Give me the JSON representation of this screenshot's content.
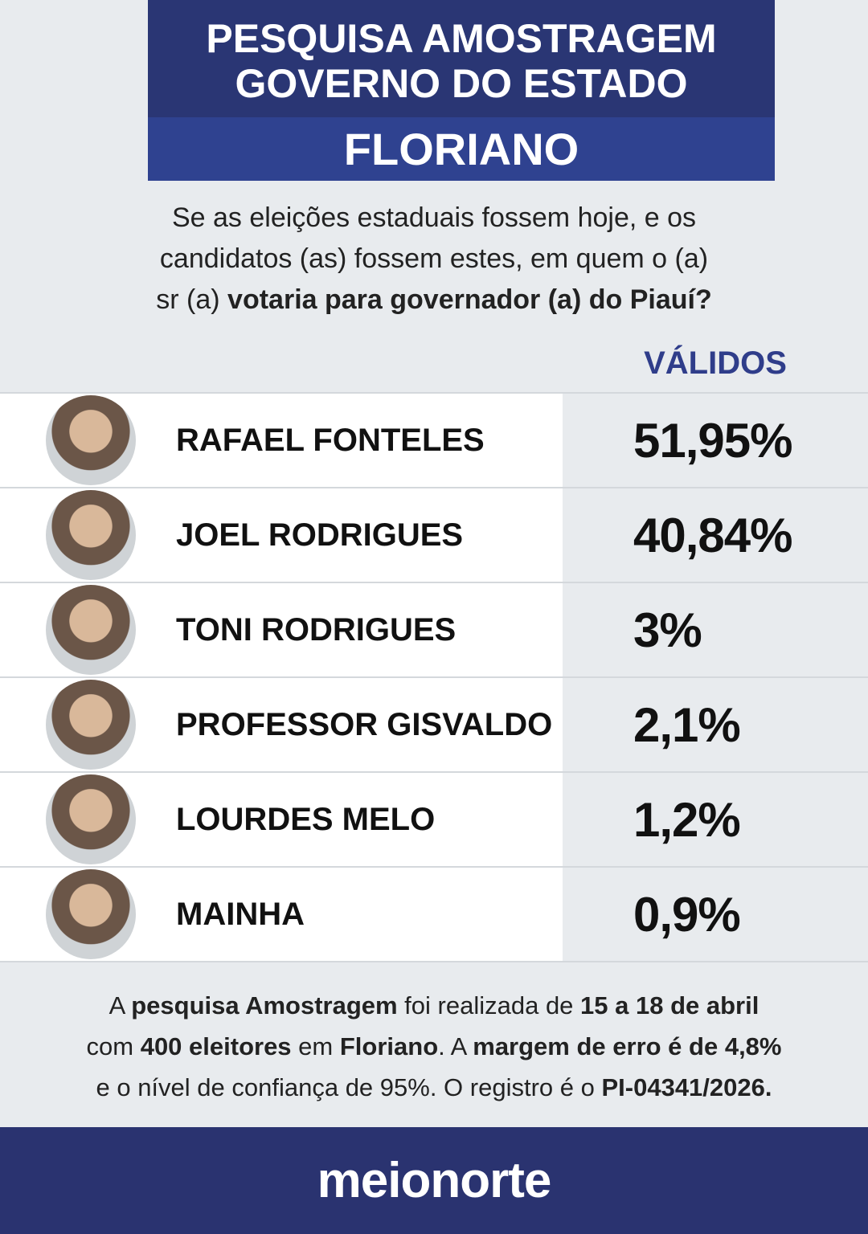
{
  "header": {
    "title_lines": [
      "PESQUISA AMOSTRAGEM",
      "GOVERNO DO ESTADO"
    ],
    "city": "FLORIANO"
  },
  "question": {
    "lines": [
      [
        {
          "text": "Se as eleições estaduais fossem hoje, e os",
          "bold": false
        }
      ],
      [
        {
          "text": "candidatos (as) fossem estes, em quem o (a)",
          "bold": false
        }
      ],
      [
        {
          "text": "sr (a) ",
          "bold": false
        },
        {
          "text": "votaria para governador (a) do Piauí?",
          "bold": true
        }
      ]
    ]
  },
  "table": {
    "column_header": "VÁLIDOS",
    "rows": [
      [
        "RAFAEL FONTELES",
        "51,95%"
      ],
      [
        "JOEL RODRIGUES",
        "40,84%"
      ],
      [
        "TONI RODRIGUES",
        "3%"
      ],
      [
        "PROFESSOR GISVALDO",
        "2,1%"
      ],
      [
        "LOURDES MELO",
        "1,2%"
      ],
      [
        "MAINHA",
        "0,9%"
      ]
    ]
  },
  "footnote": {
    "lines": [
      [
        {
          "text": "A ",
          "bold": false
        },
        {
          "text": "pesquisa Amostragem",
          "bold": true
        },
        {
          "text": " foi realizada de ",
          "bold": false
        },
        {
          "text": "15 a 18 de abril",
          "bold": true
        }
      ],
      [
        {
          "text": "com ",
          "bold": false
        },
        {
          "text": "400 eleitores",
          "bold": true
        },
        {
          "text": " em ",
          "bold": false
        },
        {
          "text": "Floriano",
          "bold": true
        },
        {
          "text": ". A ",
          "bold": false
        },
        {
          "text": "margem de erro é de 4,8%",
          "bold": true
        }
      ],
      [
        {
          "text": "e o nível de confiança de 95%. O registro é o ",
          "bold": false
        },
        {
          "text": "PI-04341/2026.",
          "bold": true
        }
      ]
    ]
  },
  "footer": {
    "logo": "meionorte"
  }
}
